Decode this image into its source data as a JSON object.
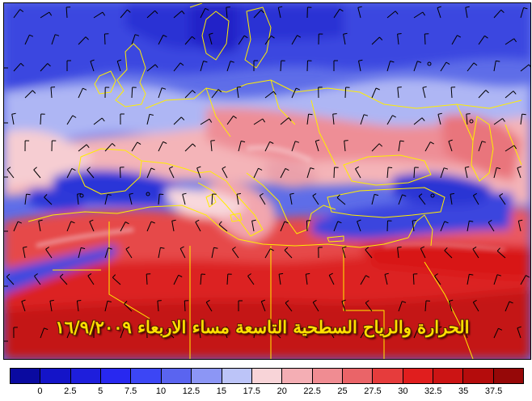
{
  "map": {
    "title": "الحرارة والرياح السطحية التاسعة مساء الاربعاء ١٦/٩/٢٠٠٩"
  },
  "colorbar": {
    "colors": [
      "#0a0aa0",
      "#1414c8",
      "#1e1edc",
      "#2828f0",
      "#3c46f5",
      "#5a64f0",
      "#8c96f5",
      "#bcc4f8",
      "#f8d4d8",
      "#f4aeb4",
      "#f08c92",
      "#ea6468",
      "#e63c3c",
      "#e01e1e",
      "#cc1414",
      "#b40c0c",
      "#960808"
    ],
    "tick_labels": [
      "0",
      "2.5",
      "5",
      "7.5",
      "10",
      "12.5",
      "15",
      "17.5",
      "20",
      "22.5",
      "25",
      "27.5",
      "30",
      "32.5",
      "35",
      "37.5"
    ]
  }
}
